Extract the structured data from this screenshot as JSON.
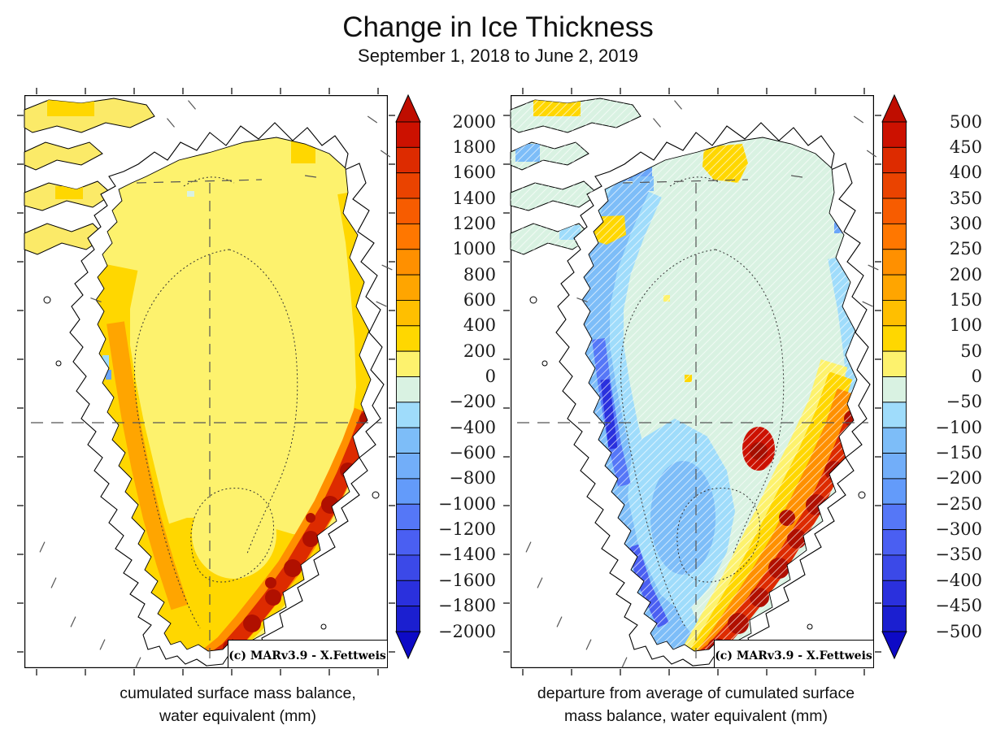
{
  "title": "Change in Ice Thickness",
  "subtitle": "September 1, 2018 to June 2, 2019",
  "panels": [
    {
      "caption_line1": "cumulated surface mass balance,",
      "caption_line2": "water equivalent (mm)",
      "credit": "(c) MARv3.9 - X.Fettweis",
      "colorbar": {
        "max": 2000,
        "min": -2000,
        "step": 200,
        "units": "mm",
        "ticks": [
          "2000",
          "1800",
          "1600",
          "1400",
          "1200",
          "1000",
          "800",
          "600",
          "400",
          "200",
          "0",
          "−200",
          "−400",
          "−600",
          "−800",
          "−1000",
          "−1200",
          "−1400",
          "−1600",
          "−1800",
          "−2000"
        ]
      }
    },
    {
      "caption_line1": "departure from average of cumulated surface",
      "caption_line2": "mass balance, water equivalent (mm)",
      "credit": "(c) MARv3.9 - X.Fettweis",
      "colorbar": {
        "max": 500,
        "min": -500,
        "step": 50,
        "units": "mm",
        "ticks": [
          "500",
          "450",
          "400",
          "350",
          "300",
          "250",
          "200",
          "150",
          "100",
          "50",
          "0",
          "−50",
          "−100",
          "−150",
          "−200",
          "−250",
          "−300",
          "−350",
          "−400",
          "−450",
          "−500"
        ]
      }
    }
  ],
  "palette": {
    "top_arrow": "#bf0d00",
    "segments": [
      "#cc1100",
      "#dd2b00",
      "#ea4300",
      "#f75c00",
      "#ff7700",
      "#ff9000",
      "#ffa500",
      "#ffbf00",
      "#ffd700",
      "#fdf26d",
      "#d9f2e2",
      "#9fdcfb",
      "#7dbdf8",
      "#72aef9",
      "#639bfa",
      "#5577f7",
      "#4a5ff2",
      "#3b49e8",
      "#2a30dd",
      "#1b1fd0"
    ],
    "bottom_arrow": "#0d0ac6",
    "ocean": "#ffffff",
    "land_tundra": "#ffffff",
    "coastline": "#000000"
  },
  "chart_data": [
    {
      "type": "heatmap",
      "subtype": "geographic-map",
      "region": "Greenland",
      "title": "cumulated surface mass balance, water equivalent (mm)",
      "period": "September 1, 2018 to June 2, 2019",
      "colorbar": {
        "min": -2000,
        "max": 2000,
        "step": 200,
        "units": "mm",
        "orientation": "vertical",
        "position": "right"
      },
      "pattern_summary": "Ice-sheet interior 0-400 mm (pale yellow to gold); western and southern margins 400-1000 mm (orange); southeast coastal margin 1200-2000+ mm (red to dark red); a few negative pixels (light blue) along the central west coast; non-ice land and ocean shown white",
      "credit": "(c) MARv3.9 - X.Fettweis"
    },
    {
      "type": "heatmap",
      "subtype": "geographic-map",
      "region": "Greenland",
      "title": "departure from average of cumulated surface mass balance, water equivalent (mm)",
      "period": "September 1, 2018 to June 2, 2019",
      "colorbar": {
        "min": -500,
        "max": 500,
        "step": 50,
        "units": "mm",
        "orientation": "vertical",
        "position": "right"
      },
      "pattern_summary": "Interior near average (pale green with white hatching); west coast and south-central sector 50-300 mm below average (blues, locally -400 to -500 dark blue); southeast coastal margin 150-500+ mm above average (orange to dark red); scattered weak positive patches (yellow) in the north and interior",
      "credit": "(c) MARv3.9 - X.Fettweis"
    }
  ]
}
